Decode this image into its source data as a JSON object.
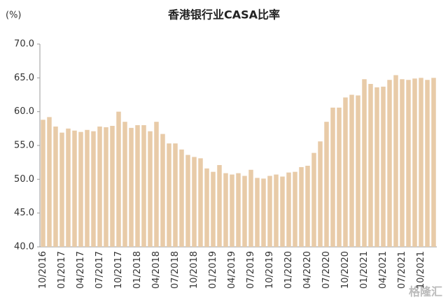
{
  "chart_data": {
    "type": "bar",
    "title": "香港银行业CASA比率",
    "y_label": "(%)",
    "watermark": "格隆汇",
    "categories": [
      "10/2016",
      null,
      null,
      "01/2017",
      null,
      null,
      "04/2017",
      null,
      null,
      "07/2017",
      null,
      null,
      "10/2017",
      null,
      null,
      "01/2018",
      null,
      null,
      "04/2018",
      null,
      null,
      "07/2018",
      null,
      null,
      "10/2018",
      null,
      null,
      "01/2019",
      null,
      null,
      "04/2019",
      null,
      null,
      "07/2019",
      null,
      null,
      "10/2019",
      null,
      null,
      "01/2020",
      null,
      null,
      "04/2020",
      null,
      null,
      "07/2020",
      null,
      null,
      "10/2020",
      null,
      null,
      "01/2021",
      null,
      null,
      "04/2021",
      null,
      null,
      "07/2021",
      null,
      null,
      "10/2021",
      null,
      null
    ],
    "values": [
      58.8,
      59.2,
      57.8,
      56.9,
      57.5,
      57.2,
      57.0,
      57.3,
      57.1,
      57.8,
      57.7,
      57.9,
      60.0,
      58.5,
      57.6,
      58.0,
      58.0,
      57.1,
      58.5,
      56.7,
      55.3,
      55.3,
      54.4,
      53.6,
      53.3,
      53.1,
      51.6,
      51.1,
      52.1,
      50.9,
      50.7,
      50.9,
      50.5,
      51.4,
      50.2,
      50.1,
      50.5,
      50.7,
      50.4,
      51.0,
      51.1,
      51.8,
      52.0,
      53.9,
      55.6,
      58.5,
      60.6,
      60.6,
      62.1,
      62.5,
      62.4,
      64.8,
      64.1,
      63.6,
      63.7,
      64.7,
      65.4,
      64.8,
      64.7,
      64.9,
      65.0,
      64.7,
      65.0
    ],
    "color": "#e8cba8",
    "ylim": [
      40,
      70
    ],
    "yticks": [
      {
        "value": 40,
        "label": "40.0"
      },
      {
        "value": 45,
        "label": "45.0"
      },
      {
        "value": 50,
        "label": "50.0"
      },
      {
        "value": 55,
        "label": "55.0"
      },
      {
        "value": 60,
        "label": "60.0"
      },
      {
        "value": 65,
        "label": "65.0"
      },
      {
        "value": 70,
        "label": "70.0"
      }
    ],
    "grid": false
  }
}
